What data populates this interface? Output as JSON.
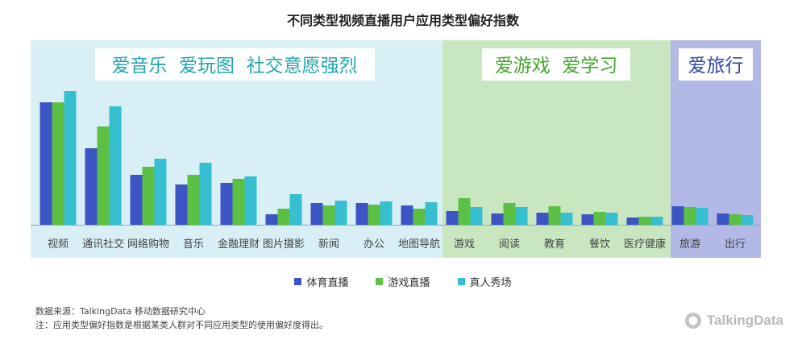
{
  "title": "不同类型视频直播用户应用类型偏好指数",
  "colors": {
    "s1": "#3b55c4",
    "s2": "#5cc044",
    "s3": "#36bfd0",
    "band1": "#d8eff6",
    "band2": "#c8e7c0",
    "band3": "#b2b9e6",
    "band1_text": "#23a5b0",
    "band2_text": "#43a82e",
    "band3_text": "#3148a6"
  },
  "groups": [
    {
      "label": "爱音乐  爱玩图  社交意愿强烈"
    },
    {
      "label": "爱游戏  爱学习"
    },
    {
      "label": "爱旅行"
    }
  ],
  "chart_data": {
    "type": "bar",
    "categories": [
      "视频",
      "通讯社交",
      "网络购物",
      "音乐",
      "金融理财",
      "图片摄影",
      "新闻",
      "办公",
      "地图导航",
      "游戏",
      "阅读",
      "教育",
      "餐饮",
      "医疗健康",
      "旅游",
      "出行"
    ],
    "series": [
      {
        "name": "体育直播",
        "values": [
          152,
          95,
          62,
          50,
          52,
          13,
          27,
          27,
          24,
          17,
          14,
          15,
          13,
          9,
          23,
          14
        ]
      },
      {
        "name": "游戏直播",
        "values": [
          152,
          122,
          72,
          62,
          57,
          20,
          24,
          25,
          20,
          33,
          27,
          23,
          16,
          10,
          22,
          13
        ]
      },
      {
        "name": "真人秀场",
        "values": [
          166,
          147,
          82,
          77,
          60,
          38,
          30,
          29,
          28,
          22,
          22,
          15,
          15,
          10,
          21,
          12
        ]
      }
    ],
    "ylim": [
      0,
      190
    ],
    "grid": false,
    "legend": "bottom-center"
  },
  "footnote": {
    "source": "数据来源：TalkingData 移动数据研究中心",
    "note": "注：应用类型偏好指数是根据某类人群对不同应用类型的使用偏好度得出。"
  },
  "brand": "TalkingData"
}
